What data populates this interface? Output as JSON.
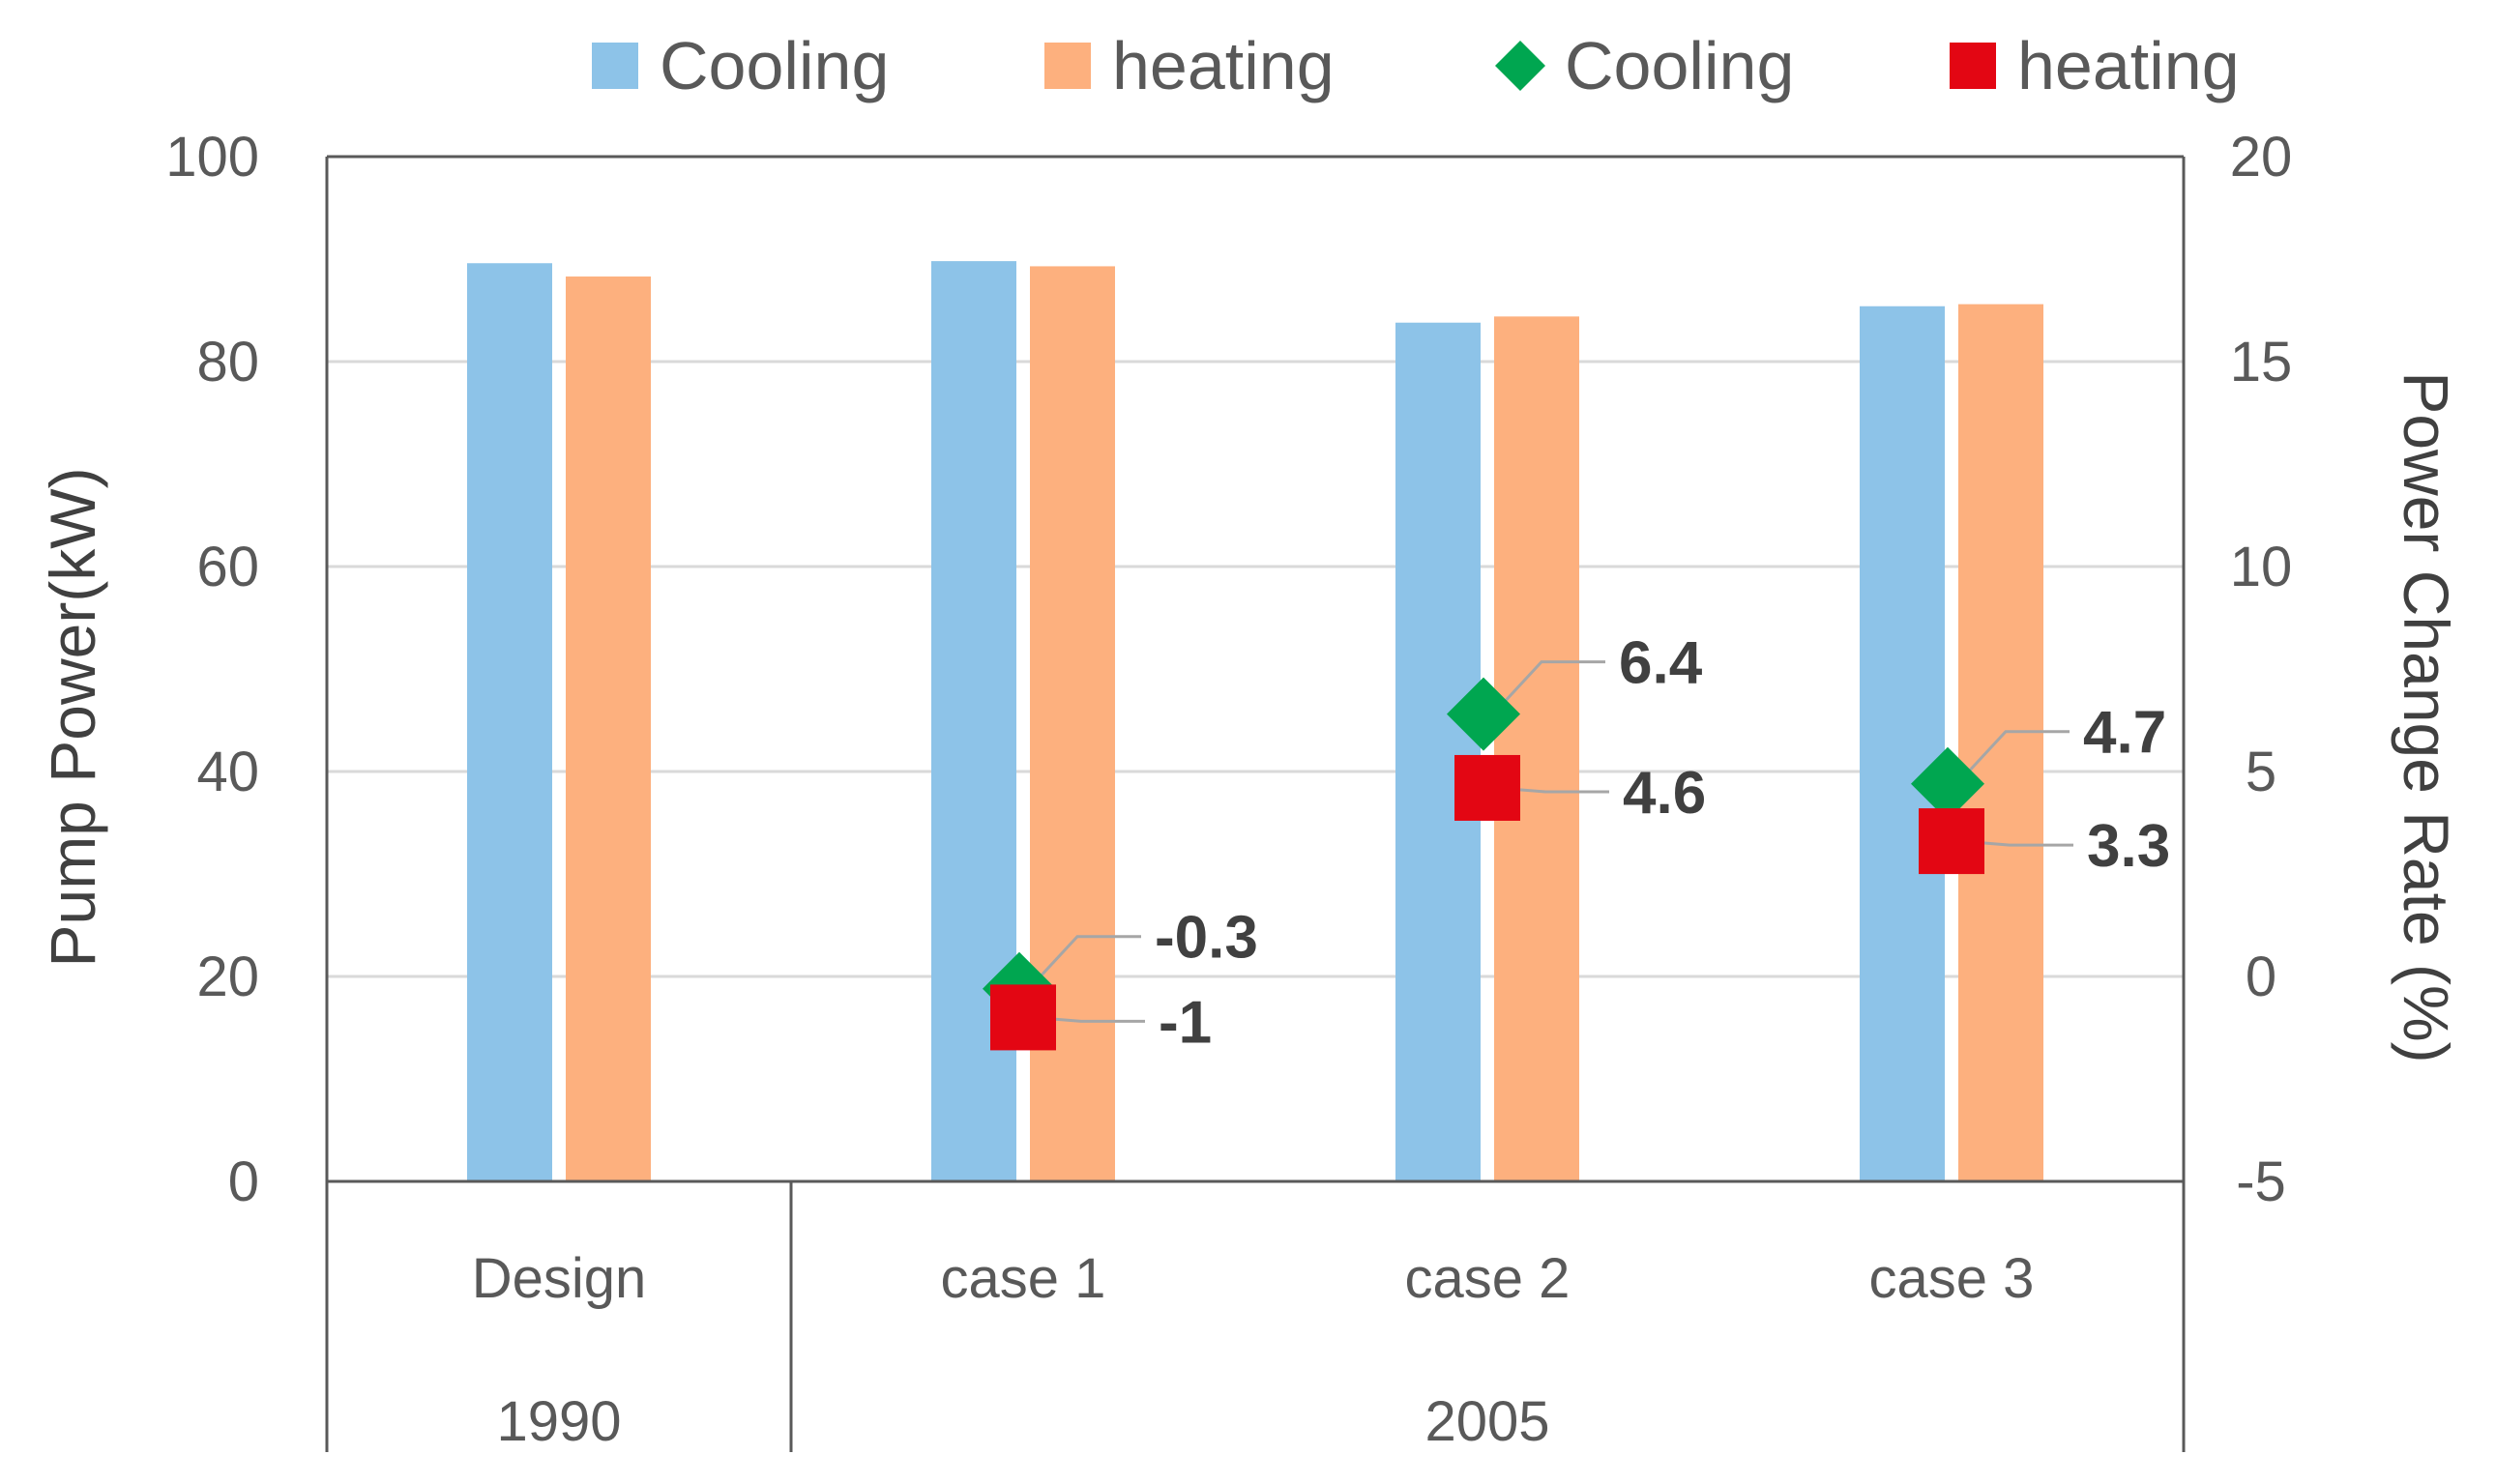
{
  "chart_data": {
    "type": "bar",
    "title": "",
    "groups": [
      {
        "label": "1990",
        "categories": [
          "Design"
        ]
      },
      {
        "label": "2005",
        "categories": [
          "case 1",
          "case 2",
          "case 3"
        ]
      }
    ],
    "categories": [
      "Design",
      "case 1",
      "case 2",
      "case 3"
    ],
    "series": [
      {
        "name": "Cooling",
        "type": "bar",
        "axis": "left",
        "color": "#8DC3E8",
        "values": [
          89.6,
          89.8,
          83.8,
          85.4
        ]
      },
      {
        "name": "heating",
        "type": "bar",
        "axis": "left",
        "color": "#FDB07E",
        "values": [
          88.3,
          89.3,
          84.4,
          85.6
        ]
      },
      {
        "name": "Cooling",
        "type": "scatter",
        "marker": "diamond",
        "axis": "right",
        "color": "#00A650",
        "values": [
          null,
          -0.3,
          6.4,
          4.7
        ],
        "labels": [
          null,
          "-0.3",
          "6.4",
          "4.7"
        ]
      },
      {
        "name": "heating",
        "type": "scatter",
        "marker": "square",
        "axis": "right",
        "color": "#E30613",
        "values": [
          null,
          -1,
          4.6,
          3.3
        ],
        "labels": [
          null,
          "-1",
          "4.6",
          "3.3"
        ]
      }
    ],
    "ylabel": "Pump Power(kW)",
    "y2label": "Power Change Rate (%)",
    "ylim": [
      0,
      100
    ],
    "y2lim": [
      -5,
      20
    ],
    "yticks": [
      "0",
      "20",
      "40",
      "60",
      "80",
      "100"
    ],
    "y2ticks": [
      "-5",
      "0",
      "5",
      "10",
      "15",
      "20"
    ],
    "grid": true,
    "legend": "top"
  }
}
